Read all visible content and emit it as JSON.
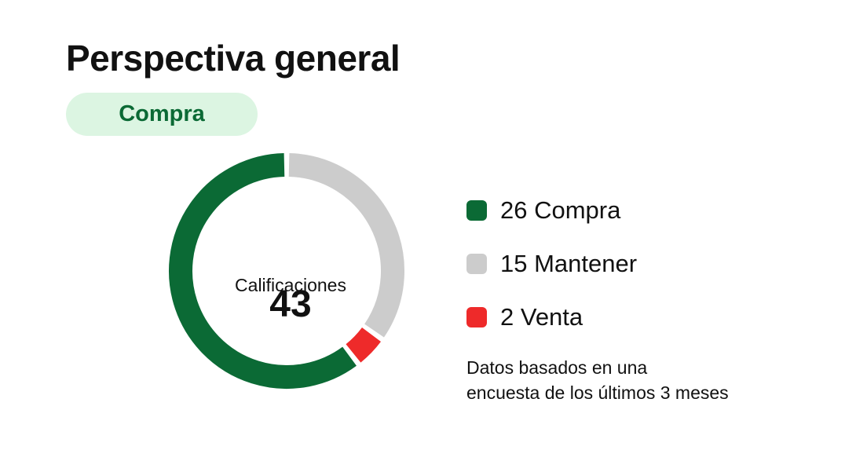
{
  "header": {
    "title": "Perspectiva general",
    "badge": "Compra"
  },
  "summary": {
    "total": "43",
    "total_label": "Calificaciones"
  },
  "note": {
    "line1": "Datos basados en una",
    "line2": "encuesta de los últimos 3 meses"
  },
  "colors": {
    "buy": "#0b6a35",
    "hold": "#cccccc",
    "sell": "#ee2a2a",
    "badge_bg": "#dcf5e2"
  },
  "chart_data": {
    "type": "pie",
    "variant": "donut",
    "total": 43,
    "categories": [
      "Compra",
      "Mantener",
      "Venta"
    ],
    "values": [
      26,
      15,
      2
    ],
    "legend": [
      "26 Compra",
      "15 Mantener",
      "2 Venta"
    ],
    "colors": [
      "#0b6a35",
      "#cccccc",
      "#ee2a2a"
    ],
    "direction": "clockwise from top: Mantener, Venta, Compra"
  }
}
